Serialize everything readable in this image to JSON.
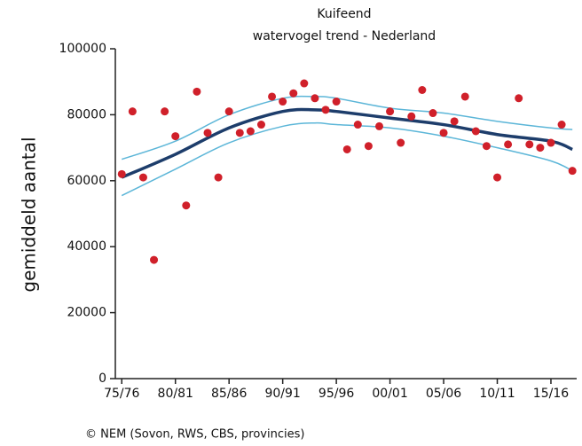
{
  "chart_data": {
    "type": "scatter",
    "title": [
      "Kuifeend",
      "watervogel trend - Nederland"
    ],
    "y_label": "gemiddeld aantal",
    "source": "© NEM (Sovon, RWS, CBS, provincies)",
    "xlim": [
      1974.4,
      2017.4
    ],
    "xticks": [
      {
        "value": 1975,
        "label": "75/76"
      },
      {
        "value": 1980,
        "label": "80/81"
      },
      {
        "value": 1985,
        "label": "85/86"
      },
      {
        "value": 1990,
        "label": "90/91"
      },
      {
        "value": 1995,
        "label": "95/96"
      },
      {
        "value": 2000,
        "label": "00/01"
      },
      {
        "value": 2005,
        "label": "05/06"
      },
      {
        "value": 2010,
        "label": "10/11"
      },
      {
        "value": 2015,
        "label": "15/16"
      }
    ],
    "ylim": [
      0,
      100000
    ],
    "yticks": [
      0,
      20000,
      40000,
      60000,
      80000,
      100000
    ],
    "series": [
      {
        "type": "line",
        "color": "#5cb6d8",
        "width": 1.5,
        "x": [
          1975,
          1980,
          1985,
          1990,
          1993,
          1995,
          2000,
          2005,
          2010,
          2015,
          2017
        ],
        "values": [
          66500,
          72000,
          80000,
          85000,
          85500,
          85000,
          82000,
          80500,
          78000,
          76000,
          75500
        ]
      },
      {
        "type": "line",
        "color": "#5cb6d8",
        "width": 1.5,
        "x": [
          1975,
          1980,
          1985,
          1990,
          1993,
          1995,
          2000,
          2005,
          2010,
          2015,
          2017
        ],
        "values": [
          55500,
          63500,
          71500,
          76500,
          77500,
          77000,
          76000,
          73500,
          70000,
          66000,
          63000
        ]
      },
      {
        "type": "line",
        "color": "#1d3d6b",
        "width": 3.5,
        "x": [
          1975,
          1980,
          1985,
          1990,
          1993,
          1995,
          2000,
          2005,
          2010,
          2015,
          2017
        ],
        "values": [
          61000,
          68000,
          76000,
          81000,
          81500,
          81000,
          79000,
          77000,
          74000,
          72000,
          69500
        ]
      },
      {
        "type": "scatter",
        "color": "#d0202a",
        "x": [
          1975,
          1976,
          1977,
          1978,
          1979,
          1980,
          1981,
          1982,
          1983,
          1984,
          1985,
          1986,
          1987,
          1988,
          1989,
          1990,
          1991,
          1992,
          1993,
          1994,
          1995,
          1996,
          1997,
          1998,
          1999,
          2000,
          2001,
          2002,
          2003,
          2004,
          2005,
          2006,
          2007,
          2008,
          2009,
          2010,
          2011,
          2012,
          2013,
          2014,
          2015,
          2016,
          2017
        ],
        "values": [
          62000,
          81000,
          61000,
          36000,
          81000,
          73500,
          52500,
          87000,
          74500,
          61000,
          81000,
          74500,
          75000,
          77000,
          85500,
          84000,
          86500,
          89500,
          85000,
          81500,
          84000,
          69500,
          77000,
          70500,
          76500,
          81000,
          71500,
          79500,
          87500,
          80500,
          74500,
          78000,
          85500,
          75000,
          70500,
          61000,
          71000,
          85000,
          71000,
          70000,
          71500,
          77000,
          63000
        ]
      }
    ]
  }
}
